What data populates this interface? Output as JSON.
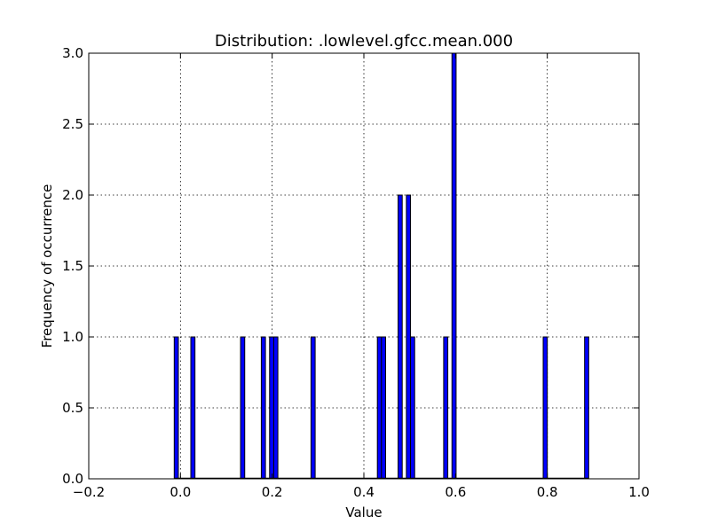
{
  "chart_data": {
    "type": "bar",
    "title": "Distribution: .lowlevel.gfcc.mean.000",
    "xlabel": "Value",
    "ylabel": "Frequency of occurrence",
    "xlim": [
      -0.2,
      1.0
    ],
    "ylim": [
      0.0,
      3.0
    ],
    "xticks": [
      -0.2,
      0.0,
      0.2,
      0.4,
      0.6,
      0.8,
      1.0
    ],
    "xtick_labels": [
      "−0.2",
      "0.0",
      "0.2",
      "0.4",
      "0.6",
      "0.8",
      "1.0"
    ],
    "yticks": [
      0.0,
      0.5,
      1.0,
      1.5,
      2.0,
      2.5,
      3.0
    ],
    "ytick_labels": [
      "0.0",
      "0.5",
      "1.0",
      "1.5",
      "2.0",
      "2.5",
      "3.0"
    ],
    "grid": true,
    "bin_range": [
      -0.0136,
      0.8903
    ],
    "bin_count": 100,
    "bins": [
      {
        "x": -0.0136,
        "value": 1
      },
      {
        "x": 0.0226,
        "value": 1
      },
      {
        "x": 0.1311,
        "value": 1
      },
      {
        "x": 0.1763,
        "value": 1
      },
      {
        "x": 0.1944,
        "value": 1
      },
      {
        "x": 0.2034,
        "value": 1
      },
      {
        "x": 0.2847,
        "value": 1
      },
      {
        "x": 0.4294,
        "value": 1
      },
      {
        "x": 0.4384,
        "value": 1
      },
      {
        "x": 0.4746,
        "value": 2
      },
      {
        "x": 0.4927,
        "value": 2
      },
      {
        "x": 0.5017,
        "value": 1
      },
      {
        "x": 0.574,
        "value": 1
      },
      {
        "x": 0.5921,
        "value": 3
      },
      {
        "x": 0.791,
        "value": 1
      },
      {
        "x": 0.8813,
        "value": 1
      }
    ],
    "colors": {
      "bar": "#0000ff",
      "edge": "#000000"
    }
  }
}
